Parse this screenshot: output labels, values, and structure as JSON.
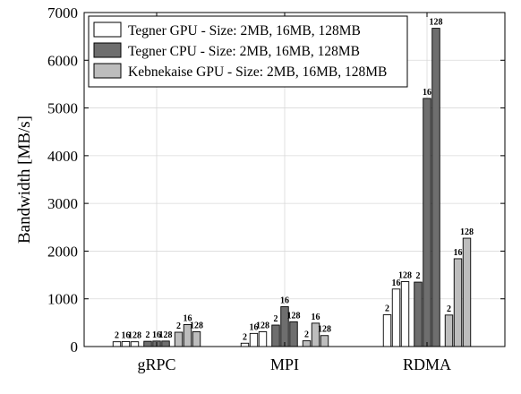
{
  "chart_data": {
    "type": "bar",
    "title": "",
    "xlabel": "",
    "ylabel": "Bandwidth [MB/s]",
    "ylim": [
      0,
      7000
    ],
    "yticks": [
      0,
      1000,
      2000,
      3000,
      4000,
      5000,
      6000,
      7000
    ],
    "grid": true,
    "legend_position": "top-left",
    "categories": [
      "gRPC",
      "MPI",
      "RDMA"
    ],
    "size_labels": [
      "2",
      "16",
      "128"
    ],
    "series": [
      {
        "name": "Tegner GPU - Size: 2MB, 16MB, 128MB",
        "color": "#ffffff",
        "values": [
          [
            100,
            105,
            100
          ],
          [
            70,
            275,
            310
          ],
          [
            665,
            1205,
            1360
          ]
        ]
      },
      {
        "name": "Tegner CPU - Size: 2MB, 16MB, 128MB",
        "color": "#6e6e6e",
        "values": [
          [
            110,
            115,
            115
          ],
          [
            450,
            835,
            520
          ],
          [
            1350,
            5200,
            6670
          ]
        ]
      },
      {
        "name": "Kebnekaise GPU - Size: 2MB, 16MB, 128MB",
        "color": "#bdbdbd",
        "values": [
          [
            300,
            460,
            310
          ],
          [
            120,
            490,
            230
          ],
          [
            660,
            1840,
            2270
          ]
        ]
      }
    ]
  }
}
